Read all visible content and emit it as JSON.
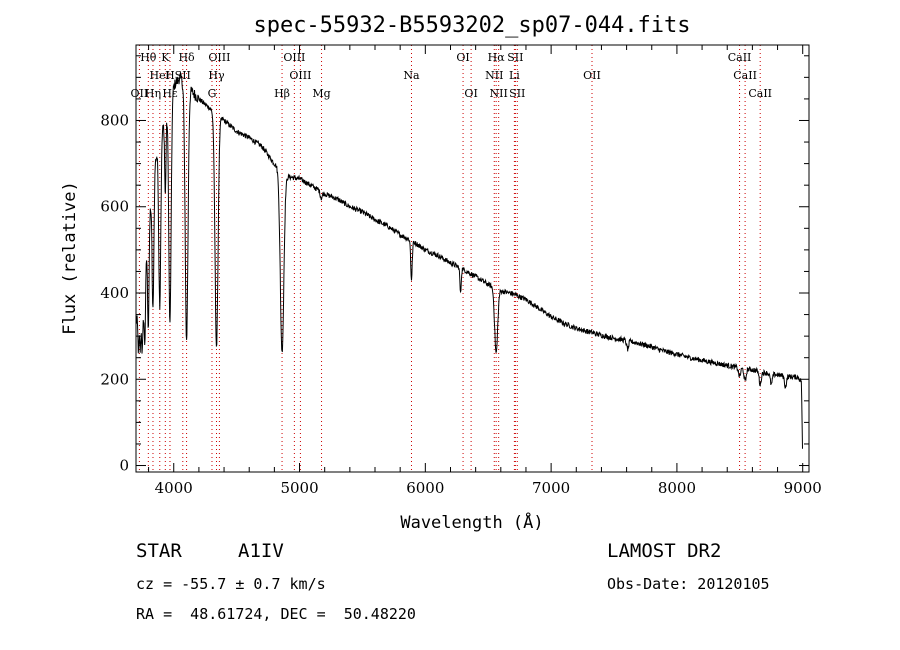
{
  "chart_data": {
    "type": "line",
    "title": "spec-55932-B5593202_sp07-044.fits",
    "xlabel": "Wavelength (Å)",
    "ylabel": "Flux (relative)",
    "xlim": [
      3700,
      9050
    ],
    "ylim": [
      -15,
      975
    ],
    "x_ticks": [
      4000,
      5000,
      6000,
      7000,
      8000,
      9000
    ],
    "y_ticks": [
      0,
      200,
      400,
      600,
      800
    ],
    "x_tick_labels": [
      "4000",
      "5000",
      "6000",
      "7000",
      "8000",
      "9000"
    ],
    "y_tick_labels": [
      "0",
      "200",
      "400",
      "600",
      "800"
    ],
    "continuum": [
      [
        3700,
        330
      ],
      [
        3760,
        420
      ],
      [
        3800,
        560
      ],
      [
        3850,
        700
      ],
      [
        3900,
        770
      ],
      [
        3950,
        820
      ],
      [
        4000,
        880
      ],
      [
        4050,
        900
      ],
      [
        4100,
        880
      ],
      [
        4200,
        850
      ],
      [
        4300,
        825
      ],
      [
        4400,
        800
      ],
      [
        4500,
        775
      ],
      [
        4600,
        760
      ],
      [
        4700,
        740
      ],
      [
        4800,
        700
      ],
      [
        4900,
        670
      ],
      [
        5000,
        665
      ],
      [
        5100,
        648
      ],
      [
        5200,
        630
      ],
      [
        5300,
        618
      ],
      [
        5400,
        600
      ],
      [
        5500,
        588
      ],
      [
        5600,
        570
      ],
      [
        5700,
        555
      ],
      [
        5800,
        535
      ],
      [
        5900,
        520
      ],
      [
        6000,
        500
      ],
      [
        6100,
        487
      ],
      [
        6200,
        470
      ],
      [
        6300,
        455
      ],
      [
        6400,
        438
      ],
      [
        6500,
        420
      ],
      [
        6600,
        405
      ],
      [
        6700,
        398
      ],
      [
        6800,
        385
      ],
      [
        6900,
        365
      ],
      [
        7000,
        345
      ],
      [
        7100,
        330
      ],
      [
        7200,
        318
      ],
      [
        7300,
        310
      ],
      [
        7400,
        302
      ],
      [
        7500,
        295
      ],
      [
        7600,
        290
      ],
      [
        7700,
        283
      ],
      [
        7800,
        275
      ],
      [
        7900,
        265
      ],
      [
        8000,
        258
      ],
      [
        8100,
        250
      ],
      [
        8200,
        244
      ],
      [
        8300,
        238
      ],
      [
        8400,
        232
      ],
      [
        8500,
        226
      ],
      [
        8600,
        222
      ],
      [
        8700,
        215
      ],
      [
        8800,
        210
      ],
      [
        8900,
        206
      ],
      [
        8960,
        205
      ],
      [
        8990,
        195
      ],
      [
        9000,
        0
      ]
    ],
    "absorption": [
      [
        3720,
        95,
        5
      ],
      [
        3734,
        110,
        5
      ],
      [
        3750,
        140,
        6
      ],
      [
        3770,
        170,
        6
      ],
      [
        3798,
        230,
        6
      ],
      [
        3835,
        300,
        7
      ],
      [
        3889,
        380,
        8
      ],
      [
        3933,
        180,
        5
      ],
      [
        3970,
        520,
        9
      ],
      [
        4102,
        590,
        11
      ],
      [
        4340,
        540,
        12
      ],
      [
        4861,
        420,
        14
      ],
      [
        5173,
        15,
        8
      ],
      [
        5890,
        90,
        6
      ],
      [
        6280,
        60,
        5
      ],
      [
        6563,
        150,
        12
      ],
      [
        7608,
        20,
        8
      ],
      [
        8498,
        20,
        8
      ],
      [
        8542,
        30,
        8
      ],
      [
        8662,
        30,
        8
      ],
      [
        8750,
        25,
        8
      ],
      [
        8863,
        25,
        8
      ]
    ],
    "lines_upper": [
      {
        "label": "Hθ",
        "x": 3798,
        "row": 0
      },
      {
        "label": "K",
        "x": 3933,
        "row": 0
      },
      {
        "label": "Hδ",
        "x": 4102,
        "row": 0
      },
      {
        "label": "OIII",
        "x": 4363,
        "row": 0
      },
      {
        "label": "OIII",
        "x": 4959,
        "row": 0
      },
      {
        "label": "OI",
        "x": 6300,
        "row": 0
      },
      {
        "label": "Hα",
        "x": 6563,
        "row": 0
      },
      {
        "label": "SII",
        "x": 6716,
        "row": 0
      },
      {
        "label": "CaII",
        "x": 8498,
        "row": 0
      },
      {
        "label": "HeI",
        "x": 3889,
        "row": 1
      },
      {
        "label": "H",
        "x": 3970,
        "row": 1
      },
      {
        "label": "SII",
        "x": 4072,
        "row": 1
      },
      {
        "label": "Hγ",
        "x": 4340,
        "row": 1
      },
      {
        "label": "OIII",
        "x": 5007,
        "row": 1
      },
      {
        "label": "Na",
        "x": 5890,
        "row": 1
      },
      {
        "label": "NII",
        "x": 6548,
        "row": 1
      },
      {
        "label": "Li",
        "x": 6708,
        "row": 1
      },
      {
        "label": "OII",
        "x": 7325,
        "row": 1
      },
      {
        "label": "CaII",
        "x": 8542,
        "row": 1
      },
      {
        "label": "OII",
        "x": 3727,
        "row": 2
      },
      {
        "label": "Hη",
        "x": 3835,
        "row": 2
      },
      {
        "label": "Hε",
        "x": 3970,
        "row": 2
      },
      {
        "label": "G",
        "x": 4304,
        "row": 2
      },
      {
        "label": "Hβ",
        "x": 4861,
        "row": 2
      },
      {
        "label": "Mg",
        "x": 5175,
        "row": 2
      },
      {
        "label": "OI",
        "x": 6364,
        "row": 2
      },
      {
        "label": "NII",
        "x": 6583,
        "row": 2
      },
      {
        "label": "SII",
        "x": 6731,
        "row": 2
      },
      {
        "label": "CaII",
        "x": 8662,
        "row": 2
      }
    ],
    "line_marker_color": "#cc0000"
  },
  "info": {
    "object_type": "STAR",
    "subclass": "A1IV",
    "survey": "LAMOST DR2",
    "cz": "cz = -55.7 ± 0.7 km/s",
    "obs_date": "Obs-Date: 20120105",
    "coords": "RA =  48.61724, DEC =  50.48220"
  }
}
